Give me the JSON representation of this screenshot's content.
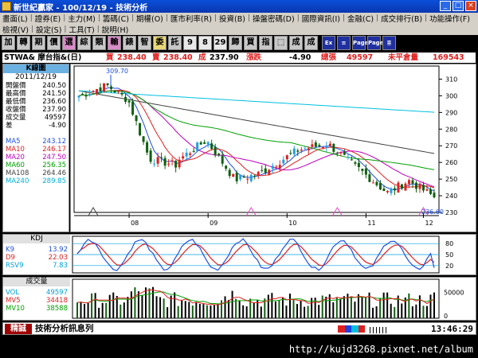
{
  "window": {
    "title": "新世紀贏家 - 100/12/19 - 技術分析"
  },
  "menu1": [
    "畫面(L)",
    "證券(E)",
    "主力(M)",
    "籌碼(C)",
    "期權(O)",
    "匯市利率(R)",
    "投資(B)",
    "操盤密碼(D)",
    "國際資訊(I)",
    "金融(C)",
    "成交排行(B)",
    "功能操作(F)"
  ],
  "menu2": [
    "檢視(V)",
    "設定(S)",
    "工具(T)",
    "說明(H)"
  ],
  "toolbar": [
    {
      "label": "加",
      "icon": "add-icon"
    },
    {
      "label": "轉",
      "icon": "switch-icon"
    },
    {
      "label": "期",
      "icon": "futures-icon"
    },
    {
      "label": "價",
      "icon": "price-icon"
    },
    {
      "label": "選",
      "icon": "select-icon"
    },
    {
      "label": "綜",
      "icon": "summary-icon"
    },
    {
      "label": "類",
      "icon": "category-icon"
    },
    {
      "label": "輸",
      "icon": "input-icon"
    },
    {
      "label": "錶",
      "icon": "chart-icon"
    },
    {
      "label": "智",
      "icon": "smart-icon"
    },
    {
      "label": "委",
      "icon": "order-icon"
    },
    {
      "label": "託",
      "icon": "entrust-icon"
    },
    {
      "label": "9",
      "icon": "page-9-icon"
    },
    {
      "label": "8",
      "icon": "page-8-icon"
    },
    {
      "label": "29",
      "icon": "page-29-icon"
    },
    {
      "label": "歸",
      "icon": "return-icon"
    },
    {
      "label": "買",
      "icon": "buy-icon"
    },
    {
      "label": "指",
      "icon": "index-icon"
    },
    {
      "label": "⬚",
      "icon": "window-icon"
    },
    {
      "label": "成",
      "icon": "volume-icon"
    },
    {
      "label": "成",
      "icon": "trade-icon"
    },
    {
      "label": "Ex",
      "icon": "exit-icon"
    },
    {
      "label": "≡",
      "icon": "list-icon"
    },
    {
      "label": "Page",
      "icon": "page-up-icon"
    },
    {
      "label": "Page",
      "icon": "page-down-icon"
    },
    {
      "label": "≣",
      "icon": "menu-icon"
    }
  ],
  "quote": {
    "symbol": "STWA& 摩台指&(日)",
    "buy_label": "買",
    "buy": "238.40",
    "sell_label": "賣",
    "sell": "238.40",
    "last_label": "成",
    "last": "237.90",
    "chg_label": "漲跌",
    "chg": "-4.90",
    "vol_label": "總張",
    "vol": "49597",
    "oi_label": "未平倉量",
    "oi": "169543"
  },
  "left_panel": {
    "title": "K線圖",
    "date": "2011/12/19",
    "rows": [
      {
        "k": "開盤價",
        "v": "240.50",
        "c": "#000"
      },
      {
        "k": "最高價",
        "v": "241.50",
        "c": "#000"
      },
      {
        "k": "最低價",
        "v": "236.60",
        "c": "#000"
      },
      {
        "k": "收盤價",
        "v": "237.90",
        "c": "#000"
      },
      {
        "k": "成交量",
        "v": "49597",
        "c": "#000"
      },
      {
        "k": "差",
        "v": "-4.90",
        "c": "#000"
      },
      {
        "k": "",
        "v": "",
        "c": "#000"
      },
      {
        "k": "MA5",
        "v": "243.12",
        "c": "#2050e0"
      },
      {
        "k": "MA10",
        "v": "246.17",
        "c": "#e02020"
      },
      {
        "k": "MA20",
        "v": "247.50",
        "c": "#c000c0"
      },
      {
        "k": "MA60",
        "v": "256.35",
        "c": "#00a000"
      },
      {
        "k": "MA108",
        "v": "264.46",
        "c": "#404040"
      },
      {
        "k": "MA240",
        "v": "289.85",
        "c": "#00b0e0"
      }
    ]
  },
  "price_chart": {
    "high_label": "309.70",
    "low_label": "236.60",
    "months": [
      "08",
      "09",
      "10",
      "11",
      "12"
    ],
    "yticks": [
      "310",
      "300",
      "290",
      "280",
      "270",
      "260",
      "250",
      "240",
      "230"
    ],
    "colors": {
      "up": "#e02020",
      "down": "#106010",
      "flat": "#1010c0",
      "candle_up_alt": "#20a0e0"
    }
  },
  "kdj": {
    "title": "KDJ",
    "rows": [
      {
        "k": "K9",
        "v": "13.92",
        "c": "#2050e0"
      },
      {
        "k": "D9",
        "v": "22.03",
        "c": "#e02020"
      },
      {
        "k": "RSV9",
        "v": "7.83",
        "c": "#00a0e0"
      }
    ],
    "yticks": [
      "80",
      "50",
      "20"
    ]
  },
  "volume": {
    "title": "成交量",
    "rows": [
      {
        "k": "VOL",
        "v": "49597",
        "c": "#00a0e0"
      },
      {
        "k": "MV5",
        "v": "34418",
        "c": "#e02020"
      },
      {
        "k": "MV10",
        "v": "38588",
        "c": "#00a000"
      }
    ],
    "yticks": [
      "50000",
      "0"
    ]
  },
  "status": {
    "brand": "精誠",
    "message": "技術分析訊息列",
    "clock": "13:46:29"
  },
  "footer": {
    "url": "http://kujd3268.pixnet.net/album"
  }
}
